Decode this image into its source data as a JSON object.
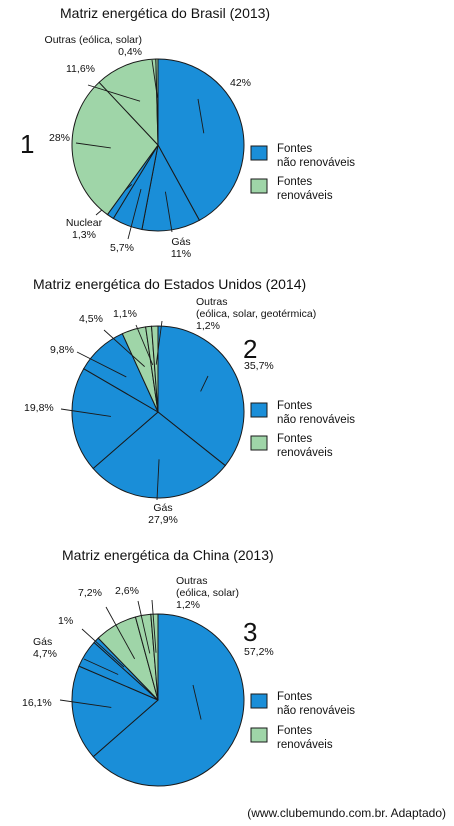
{
  "colors": {
    "non_renewable": "#1a8ed8",
    "renewable": "#9fd5a8",
    "stroke": "#1a1a1a"
  },
  "legend": {
    "non_renewable": [
      "Fontes",
      "não renováveis"
    ],
    "renewable": [
      "Fontes",
      "renováveis"
    ]
  },
  "source": "(www.clubemundo.com.br. Adaptado)",
  "chart_data": [
    {
      "type": "pie",
      "title": "Matriz energética do Brasil (2013)",
      "number": "1",
      "slices": [
        {
          "value": 42,
          "kind": "non_renewable",
          "label": [
            "42%"
          ]
        },
        {
          "value": 11,
          "kind": "non_renewable",
          "label": [
            "Gás",
            "11%"
          ]
        },
        {
          "value": 5.7,
          "kind": "non_renewable",
          "label": [
            "5,7%"
          ]
        },
        {
          "value": 1.3,
          "kind": "non_renewable",
          "label": [
            "Nuclear",
            "1,3%"
          ]
        },
        {
          "value": 28,
          "kind": "renewable",
          "label": [
            "28%"
          ]
        },
        {
          "value": 11.6,
          "kind": "renewable",
          "label": [
            "11,6%"
          ]
        },
        {
          "value": 0.4,
          "kind": "renewable",
          "label": [
            "Outras (eólica, solar)",
            "0,4%"
          ]
        }
      ]
    },
    {
      "type": "pie",
      "title": "Matriz energética do Estados Unidos (2014)",
      "number": "2",
      "slices": [
        {
          "value": 35.7,
          "kind": "non_renewable",
          "label": [
            "35,7%"
          ]
        },
        {
          "value": 27.9,
          "kind": "non_renewable",
          "label": [
            "Gás",
            "27,9%"
          ]
        },
        {
          "value": 19.8,
          "kind": "non_renewable",
          "label": [
            "19,8%"
          ]
        },
        {
          "value": 9.8,
          "kind": "non_renewable",
          "label": [
            "9,8%"
          ]
        },
        {
          "value": 4.5,
          "kind": "renewable",
          "label": [
            "4,5%"
          ]
        },
        {
          "value": 1.1,
          "kind": "renewable",
          "label": [
            "1,1%"
          ]
        },
        {
          "value": 1.2,
          "kind": "renewable",
          "label": [
            "Outras",
            "(eólica, solar, geotérmica)",
            "1,2%"
          ]
        }
      ]
    },
    {
      "type": "pie",
      "title": "Matriz energética da China (2013)",
      "number": "3",
      "slices": [
        {
          "value": 57.2,
          "kind": "non_renewable",
          "label": [
            "57,2%"
          ]
        },
        {
          "value": 16.1,
          "kind": "non_renewable",
          "label": [
            "16,1%"
          ]
        },
        {
          "value": 4.7,
          "kind": "non_renewable",
          "label": [
            "Gás",
            "4,7%"
          ]
        },
        {
          "value": 1,
          "kind": "non_renewable",
          "label": [
            "1%"
          ]
        },
        {
          "value": 7.2,
          "kind": "renewable",
          "label": [
            "7,2%"
          ]
        },
        {
          "value": 2.6,
          "kind": "renewable",
          "label": [
            "2,6%"
          ]
        },
        {
          "value": 1.2,
          "kind": "renewable",
          "label": [
            "Outras",
            "(eólica, solar)",
            "1,2%"
          ]
        }
      ]
    }
  ]
}
